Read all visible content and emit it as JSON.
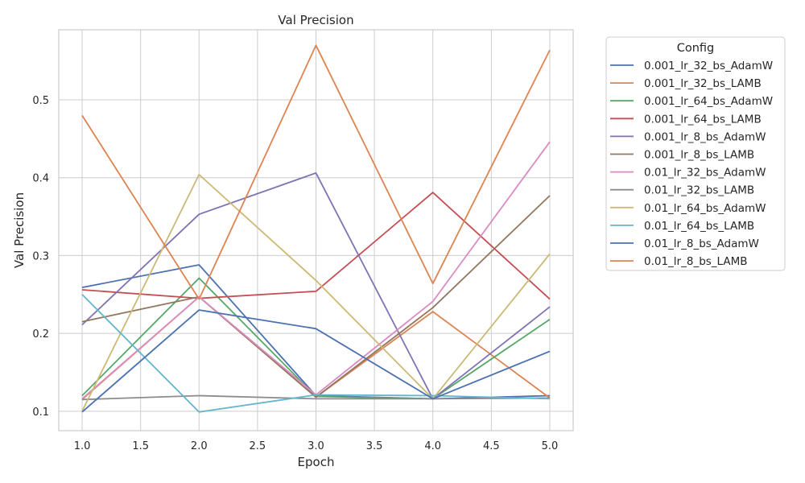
{
  "chart_data": {
    "type": "line",
    "title": "Val Precision",
    "xlabel": "Epoch",
    "ylabel": "Val Precision",
    "x": [
      1,
      2,
      3,
      4,
      5
    ],
    "xlim": [
      0.8,
      5.2
    ],
    "ylim": [
      0.075,
      0.59
    ],
    "xticks": [
      "1.0",
      "1.5",
      "2.0",
      "2.5",
      "3.0",
      "3.5",
      "4.0",
      "4.5",
      "5.0"
    ],
    "yticks": [
      "0.1",
      "0.2",
      "0.3",
      "0.4",
      "0.5"
    ],
    "grid": true,
    "legend": {
      "title": "Config",
      "placement": "outside-right"
    },
    "series": [
      {
        "name": "0.001_lr_32_bs_AdamW",
        "color": "#4c72b0",
        "values": [
          0.259,
          0.288,
          0.12,
          0.116,
          0.12
        ]
      },
      {
        "name": "0.001_lr_32_bs_LAMB",
        "color": "#dd8452",
        "values": [
          0.115,
          0.247,
          0.118,
          0.228,
          0.117
        ]
      },
      {
        "name": "0.001_lr_64_bs_AdamW",
        "color": "#55a868",
        "values": [
          0.12,
          0.271,
          0.119,
          0.116,
          0.218
        ]
      },
      {
        "name": "0.001_lr_64_bs_LAMB",
        "color": "#c44e52",
        "values": [
          0.256,
          0.245,
          0.254,
          0.381,
          0.244
        ]
      },
      {
        "name": "0.001_lr_8_bs_AdamW",
        "color": "#8172b3",
        "values": [
          0.211,
          0.353,
          0.406,
          0.116,
          0.234
        ]
      },
      {
        "name": "0.001_lr_8_bs_LAMB",
        "color": "#937860",
        "values": [
          0.215,
          0.247,
          0.118,
          0.233,
          0.377
        ]
      },
      {
        "name": "0.01_lr_32_bs_AdamW",
        "color": "#da8bc3",
        "values": [
          0.116,
          0.247,
          0.121,
          0.241,
          0.446
        ]
      },
      {
        "name": "0.01_lr_32_bs_LAMB",
        "color": "#8c8c8c",
        "values": [
          0.115,
          0.12,
          0.116,
          0.116,
          0.117
        ]
      },
      {
        "name": "0.01_lr_64_bs_AdamW",
        "color": "#ccb974",
        "values": [
          0.1,
          0.404,
          0.268,
          0.116,
          0.302
        ]
      },
      {
        "name": "0.01_lr_64_bs_LAMB",
        "color": "#64b5cd",
        "values": [
          0.25,
          0.099,
          0.121,
          0.12,
          0.116
        ]
      },
      {
        "name": "0.01_lr_8_bs_AdamW",
        "color": "#4c72b0",
        "values": [
          0.099,
          0.23,
          0.206,
          0.116,
          0.177
        ]
      },
      {
        "name": "0.01_lr_8_bs_LAMB",
        "color": "#dd8452",
        "values": [
          0.48,
          0.244,
          0.57,
          0.264,
          0.564
        ]
      }
    ]
  }
}
